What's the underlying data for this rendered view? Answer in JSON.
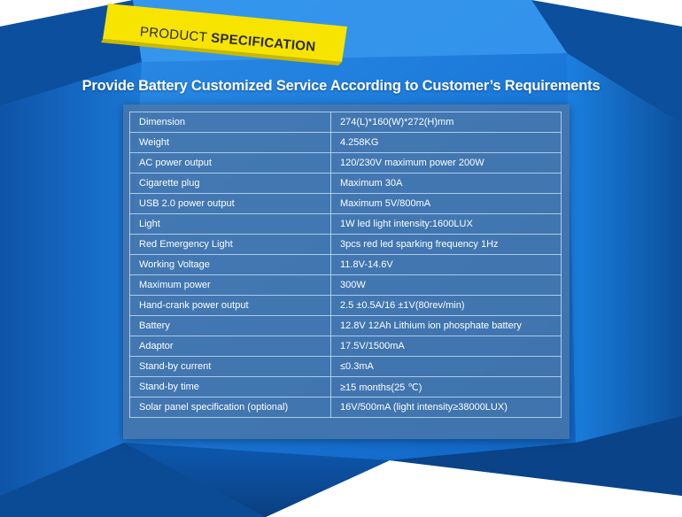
{
  "banner": {
    "word1": "PRODUCT",
    "word2": "SPECIFICATION"
  },
  "headline": "Provide Battery Customized Service According to Customer’s Requirements",
  "specs": [
    {
      "label": "Dimension",
      "value": "274(L)*160(W)*272(H)mm"
    },
    {
      "label": "Weight",
      "value": "4.258KG"
    },
    {
      "label": "AC power output",
      "value": "120/230V maximum power 200W"
    },
    {
      "label": "Cigarette plug",
      "value": " Maximum 30A"
    },
    {
      "label": "USB 2.0 power output",
      "value": "Maximum 5V/800mA"
    },
    {
      "label": "Light",
      "value": "1W led light intensity:1600LUX"
    },
    {
      "label": "Red Emergency Light",
      "value": "3pcs red led sparking frequency 1Hz"
    },
    {
      "label": "Working Voltage",
      "value": "11.8V-14.6V"
    },
    {
      "label": "Maximum power",
      "value": " 300W"
    },
    {
      "label": "Hand-crank power output",
      "value": " 2.5 ±0.5A/16 ±1V(80rev/min)"
    },
    {
      "label": "Battery",
      "value": " 12.8V 12Ah Lithium ion phosphate battery"
    },
    {
      "label": "Adaptor",
      "value": " 17.5V/1500mA"
    },
    {
      "label": "Stand-by current",
      "value": "≤0.3mA"
    },
    {
      "label": "Stand-by time",
      "value": " ≥15 months(25 ℃)"
    },
    {
      "label": "Solar panel specification (optional)",
      "value": " 16V/500mA (light intensity≥38000LUX)"
    }
  ],
  "colors": {
    "blue_dark": "#0b4f9e",
    "blue_mid": "#1a7fe0",
    "blue_light": "#4aa6f5",
    "banner_yellow": "#f7e400",
    "panel": "#4a76a8"
  }
}
